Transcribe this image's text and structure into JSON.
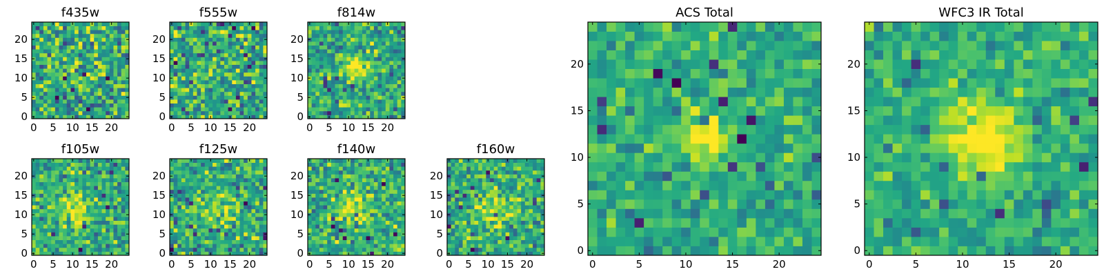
{
  "chart_data": [
    {
      "type": "heatmap",
      "title": "f435w",
      "size": 25,
      "xlim": [
        0,
        25
      ],
      "ylim": [
        0,
        25
      ],
      "xticks": [
        "0",
        "5",
        "10",
        "15",
        "20"
      ],
      "yticks": [
        "0",
        "5",
        "10",
        "15",
        "20"
      ],
      "colormap": "viridis",
      "blob": {
        "x": 12,
        "y": 12,
        "amplitude": 0.05,
        "width": 3
      },
      "noise": 0.35,
      "seed": 11
    },
    {
      "type": "heatmap",
      "title": "f555w",
      "size": 25,
      "xlim": [
        0,
        25
      ],
      "ylim": [
        0,
        25
      ],
      "xticks": [
        "0",
        "5",
        "10",
        "15",
        "20"
      ],
      "yticks": [
        "0",
        "5",
        "10",
        "15",
        "20"
      ],
      "colormap": "viridis",
      "blob": {
        "x": 12,
        "y": 13,
        "amplitude": 0.1,
        "width": 2.5
      },
      "noise": 0.35,
      "seed": 23
    },
    {
      "type": "heatmap",
      "title": "f814w",
      "size": 25,
      "xlim": [
        0,
        25
      ],
      "ylim": [
        0,
        25
      ],
      "xticks": [
        "0",
        "5",
        "10",
        "15",
        "20"
      ],
      "yticks": [
        "0",
        "5",
        "10",
        "15",
        "20"
      ],
      "colormap": "viridis",
      "blob": {
        "x": 12,
        "y": 13,
        "amplitude": 0.4,
        "width": 2
      },
      "noise": 0.3,
      "seed": 37
    },
    {
      "type": "heatmap",
      "title": "f105w",
      "size": 25,
      "xlim": [
        0,
        25
      ],
      "ylim": [
        0,
        25
      ],
      "xticks": [
        "0",
        "5",
        "10",
        "15",
        "20"
      ],
      "yticks": [
        "0",
        "5",
        "10",
        "15",
        "20"
      ],
      "colormap": "viridis",
      "blob": {
        "x": 11,
        "y": 12,
        "amplitude": 0.35,
        "width": 3
      },
      "noise": 0.3,
      "seed": 41
    },
    {
      "type": "heatmap",
      "title": "f125w",
      "size": 25,
      "xlim": [
        0,
        25
      ],
      "ylim": [
        0,
        25
      ],
      "xticks": [
        "0",
        "5",
        "10",
        "15",
        "20"
      ],
      "yticks": [
        "0",
        "5",
        "10",
        "15",
        "20"
      ],
      "colormap": "viridis",
      "blob": {
        "x": 12,
        "y": 12,
        "amplitude": 0.2,
        "width": 3
      },
      "noise": 0.3,
      "seed": 53
    },
    {
      "type": "heatmap",
      "title": "f140w",
      "size": 25,
      "xlim": [
        0,
        25
      ],
      "ylim": [
        0,
        25
      ],
      "xticks": [
        "0",
        "5",
        "10",
        "15",
        "20"
      ],
      "yticks": [
        "0",
        "5",
        "10",
        "15",
        "20"
      ],
      "colormap": "viridis",
      "blob": {
        "x": 12,
        "y": 12,
        "amplitude": 0.3,
        "width": 3
      },
      "noise": 0.3,
      "seed": 67
    },
    {
      "type": "heatmap",
      "title": "f160w",
      "size": 25,
      "xlim": [
        0,
        25
      ],
      "ylim": [
        0,
        25
      ],
      "xticks": [
        "0",
        "5",
        "10",
        "15",
        "20"
      ],
      "yticks": [
        "0",
        "5",
        "10",
        "15",
        "20"
      ],
      "colormap": "viridis",
      "blob": {
        "x": 12,
        "y": 12,
        "amplitude": 0.3,
        "width": 3
      },
      "noise": 0.3,
      "seed": 79
    },
    {
      "type": "heatmap",
      "title": "ACS Total",
      "size": 25,
      "xlim": [
        0,
        25
      ],
      "ylim": [
        0,
        25
      ],
      "xticks": [
        "0",
        "5",
        "10",
        "15",
        "20"
      ],
      "yticks": [
        "0",
        "5",
        "10",
        "15",
        "20"
      ],
      "colormap": "viridis",
      "blob": {
        "x": 12,
        "y": 12,
        "amplitude": 0.45,
        "width": 2
      },
      "noise": 0.22,
      "seed": 97
    },
    {
      "type": "heatmap",
      "title": "WFC3 IR Total",
      "size": 25,
      "xlim": [
        0,
        25
      ],
      "ylim": [
        0,
        25
      ],
      "xticks": [
        "0",
        "5",
        "10",
        "15",
        "20"
      ],
      "yticks": [
        "0",
        "5",
        "10",
        "15",
        "20"
      ],
      "colormap": "viridis",
      "blob": {
        "x": 12,
        "y": 12,
        "amplitude": 0.45,
        "width": 3
      },
      "noise": 0.2,
      "seed": 113
    }
  ]
}
